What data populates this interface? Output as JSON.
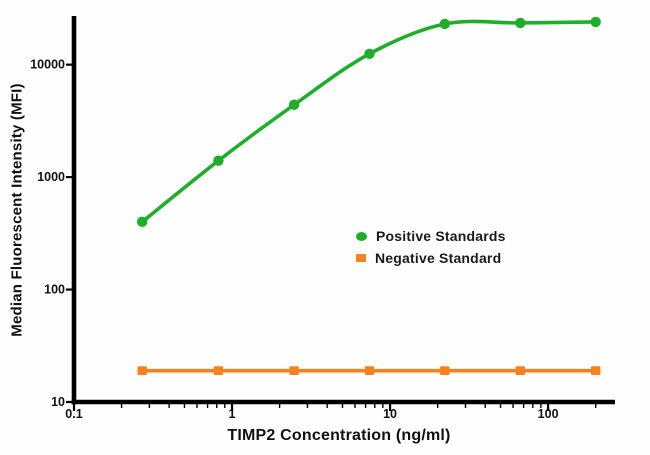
{
  "chart_data": {
    "type": "line",
    "title": "",
    "xlabel": "TIMP2 Concentration (ng/ml)",
    "ylabel": "Median Fluorescent Intensity (MFI)",
    "x_scale": "log",
    "y_scale": "log",
    "xlim": [
      0.1,
      265
    ],
    "ylim": [
      10,
      26000
    ],
    "x_ticks": [
      0.1,
      1,
      10,
      100
    ],
    "x_tick_labels": [
      "0.1",
      "1",
      "10",
      "100"
    ],
    "y_ticks": [
      10,
      100,
      1000,
      10000
    ],
    "y_tick_labels": [
      "10",
      "100",
      "1000",
      "10000"
    ],
    "grid": false,
    "legend_position": "center-right",
    "axis_color": "#000000",
    "series": [
      {
        "name": "Positive Standards",
        "color": "#1fad2b",
        "marker": "circle",
        "smooth": true,
        "x": [
          0.27,
          0.82,
          2.47,
          7.41,
          22.2,
          66.7,
          200
        ],
        "y": [
          400,
          1400,
          4400,
          12500,
          23000,
          23500,
          24000
        ]
      },
      {
        "name": "Negative Standard",
        "color": "#f5821f",
        "marker": "square",
        "smooth": false,
        "x": [
          0.27,
          0.82,
          2.47,
          7.41,
          22.2,
          66.7,
          200
        ],
        "y": [
          19,
          19,
          19,
          19,
          19,
          19,
          19
        ]
      }
    ]
  }
}
